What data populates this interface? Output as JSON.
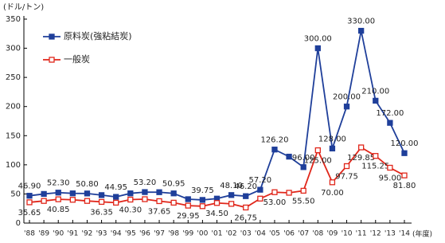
{
  "chart_data": {
    "type": "line",
    "y_label": "(ドル/トン)",
    "x_label": "(年度)",
    "categories": [
      "'88",
      "'89",
      "'90",
      "'91",
      "'92",
      "'93",
      "'94",
      "'95",
      "'96",
      "'97",
      "'98",
      "'99",
      "'00",
      "'01",
      "'02",
      "'03",
      "'04",
      "'05",
      "'06",
      "'07",
      "'08",
      "'09",
      "'10",
      "'11",
      "'12",
      "'13",
      "'14"
    ],
    "series": [
      {
        "name": "原料炭(強粘結炭)",
        "color": "#1f3f9a",
        "marker_fill": "#1f3f9a",
        "values": [
          46.9,
          50,
          52.3,
          51,
          50.8,
          48,
          44.95,
          51,
          53.2,
          53,
          50.95,
          41,
          39.75,
          42,
          48.1,
          46.2,
          57.2,
          126.2,
          114,
          96,
          300,
          128,
          200,
          330,
          210,
          172,
          120
        ],
        "value_labels": [
          "46.90",
          null,
          "52.30",
          null,
          "50.80",
          null,
          "44.95",
          null,
          "53.20",
          null,
          "50.95",
          null,
          "39.75",
          null,
          "48.10",
          "46.20",
          "57.20",
          "126.20",
          null,
          "96.00",
          "300.00",
          "128.00",
          "200.00",
          "330.00",
          "210.00",
          "172.00",
          "120.00"
        ]
      },
      {
        "name": "一般炭",
        "color": "#e0261a",
        "marker_fill": "#ffffff",
        "values": [
          35.65,
          38,
          40.85,
          40,
          38,
          36.35,
          35,
          40.3,
          41,
          37.65,
          35,
          29.95,
          29,
          34.5,
          33,
          26.75,
          42,
          53,
          52,
          55.5,
          125,
          70,
          97.75,
          129.85,
          115.25,
          95,
          81.8
        ],
        "value_labels": [
          "35.65",
          null,
          "40.85",
          null,
          null,
          "36.35",
          null,
          "40.30",
          null,
          "37.65",
          null,
          "29.95",
          null,
          "34.50",
          null,
          "26.75",
          null,
          "53.00",
          null,
          "55.50",
          "125.00",
          "70.00",
          "97.75",
          "129.85",
          "115.25",
          "95.00",
          "81.80"
        ]
      }
    ],
    "ylim": [
      0,
      350
    ],
    "yticks": [
      0,
      50,
      100,
      150,
      200,
      250,
      300,
      350
    ],
    "grid": false
  }
}
